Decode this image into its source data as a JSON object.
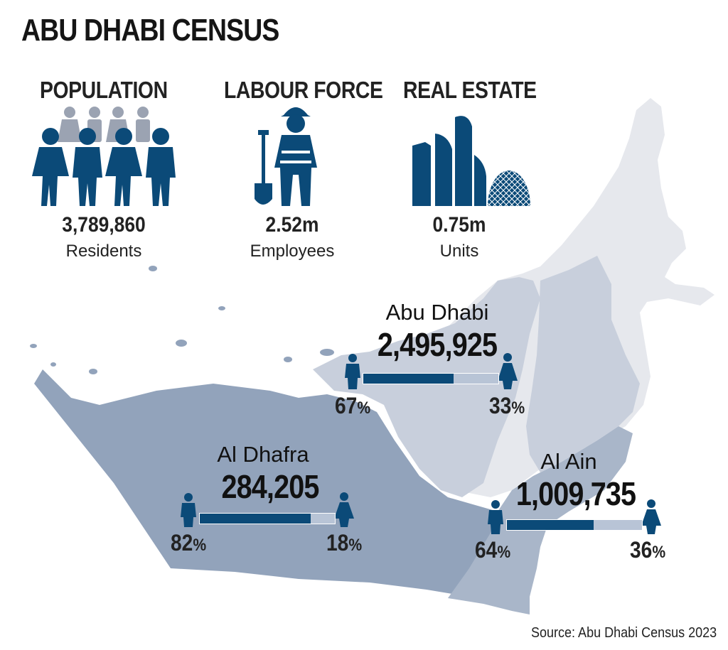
{
  "title": "ABU DHABI CENSUS",
  "stats": [
    {
      "label": "POPULATION",
      "value": "3,789,860",
      "unit": "Residents",
      "icon": "people-icon"
    },
    {
      "label": "LABOUR FORCE",
      "value": "2.52m",
      "unit": "Employees",
      "icon": "worker-with-shovel-icon"
    },
    {
      "label": "REAL ESTATE",
      "value": "0.75m",
      "unit": "Units",
      "icon": "skyline-buildings-icon"
    }
  ],
  "regions": [
    {
      "name": "Abu Dhabi",
      "population": "2,495,925",
      "male_pct": "67",
      "female_pct": "33",
      "male_share": 0.67
    },
    {
      "name": "Al Dhafra",
      "population": "284,205",
      "male_pct": "82",
      "female_pct": "18",
      "male_share": 0.82
    },
    {
      "name": "Al Ain",
      "population": "1,009,735",
      "male_pct": "64",
      "female_pct": "36",
      "male_share": 0.64
    }
  ],
  "percent_sign": "%",
  "source": "Source: Abu Dhabi Census 2023",
  "colors": {
    "navy": "#0b4a78",
    "bar_track": "#b8c4d6",
    "map_light": "#e6e8ed",
    "map_mid": "#c8cfdc",
    "map_dark": "#92a3bb",
    "map_aa": "#a9b6c9",
    "person_light": "#9ba3b2"
  }
}
